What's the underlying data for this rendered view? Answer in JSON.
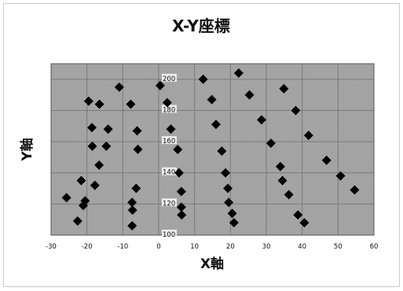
{
  "chart_data": {
    "type": "scatter",
    "title": "X-Y座標",
    "xlabel": "X軸",
    "ylabel": "Y軸",
    "xlim": [
      -30,
      60
    ],
    "ylim": [
      100,
      210
    ],
    "x_ticks": [
      "-30",
      "-20",
      "-10",
      "0",
      "10",
      "20",
      "30",
      "40",
      "50",
      "60"
    ],
    "y_ticks": [
      "100",
      "120",
      "140",
      "160",
      "180",
      "200"
    ],
    "grid": true,
    "marker": "diamond",
    "colors": {
      "marker": "#000000",
      "plot_background": "#bdbdbd",
      "grid": "#7a7a7a"
    },
    "points": [
      {
        "x": -25.7,
        "y": 124
      },
      {
        "x": -22.6,
        "y": 109
      },
      {
        "x": -21.6,
        "y": 135
      },
      {
        "x": -21.0,
        "y": 119
      },
      {
        "x": -20.5,
        "y": 122
      },
      {
        "x": -19.5,
        "y": 186
      },
      {
        "x": -18.6,
        "y": 169
      },
      {
        "x": -18.5,
        "y": 157
      },
      {
        "x": -17.8,
        "y": 132
      },
      {
        "x": -16.5,
        "y": 184
      },
      {
        "x": -16.6,
        "y": 145
      },
      {
        "x": -14.6,
        "y": 157
      },
      {
        "x": -14.1,
        "y": 168
      },
      {
        "x": -11.0,
        "y": 195
      },
      {
        "x": -7.8,
        "y": 184
      },
      {
        "x": -7.4,
        "y": 121
      },
      {
        "x": -7.3,
        "y": 116
      },
      {
        "x": -7.4,
        "y": 106
      },
      {
        "x": -6.3,
        "y": 130
      },
      {
        "x": -6.0,
        "y": 167
      },
      {
        "x": -5.8,
        "y": 155
      },
      {
        "x": 0.4,
        "y": 196
      },
      {
        "x": 2.4,
        "y": 185
      },
      {
        "x": 3.4,
        "y": 168
      },
      {
        "x": 5.3,
        "y": 155
      },
      {
        "x": 5.7,
        "y": 140
      },
      {
        "x": 6.3,
        "y": 128
      },
      {
        "x": 6.3,
        "y": 118
      },
      {
        "x": 6.4,
        "y": 113
      },
      {
        "x": 12.4,
        "y": 200
      },
      {
        "x": 14.8,
        "y": 187
      },
      {
        "x": 16.0,
        "y": 171
      },
      {
        "x": 17.6,
        "y": 154
      },
      {
        "x": 18.6,
        "y": 140
      },
      {
        "x": 19.3,
        "y": 130
      },
      {
        "x": 19.5,
        "y": 121
      },
      {
        "x": 20.5,
        "y": 114
      },
      {
        "x": 21.0,
        "y": 108
      },
      {
        "x": 22.3,
        "y": 204
      },
      {
        "x": 25.3,
        "y": 190
      },
      {
        "x": 28.7,
        "y": 174
      },
      {
        "x": 31.3,
        "y": 159
      },
      {
        "x": 33.9,
        "y": 144
      },
      {
        "x": 34.5,
        "y": 135
      },
      {
        "x": 36.3,
        "y": 126
      },
      {
        "x": 38.8,
        "y": 113
      },
      {
        "x": 40.6,
        "y": 108
      },
      {
        "x": 34.9,
        "y": 194
      },
      {
        "x": 38.2,
        "y": 180
      },
      {
        "x": 41.8,
        "y": 164
      },
      {
        "x": 46.8,
        "y": 148
      },
      {
        "x": 50.7,
        "y": 138
      },
      {
        "x": 54.6,
        "y": 129
      }
    ]
  }
}
